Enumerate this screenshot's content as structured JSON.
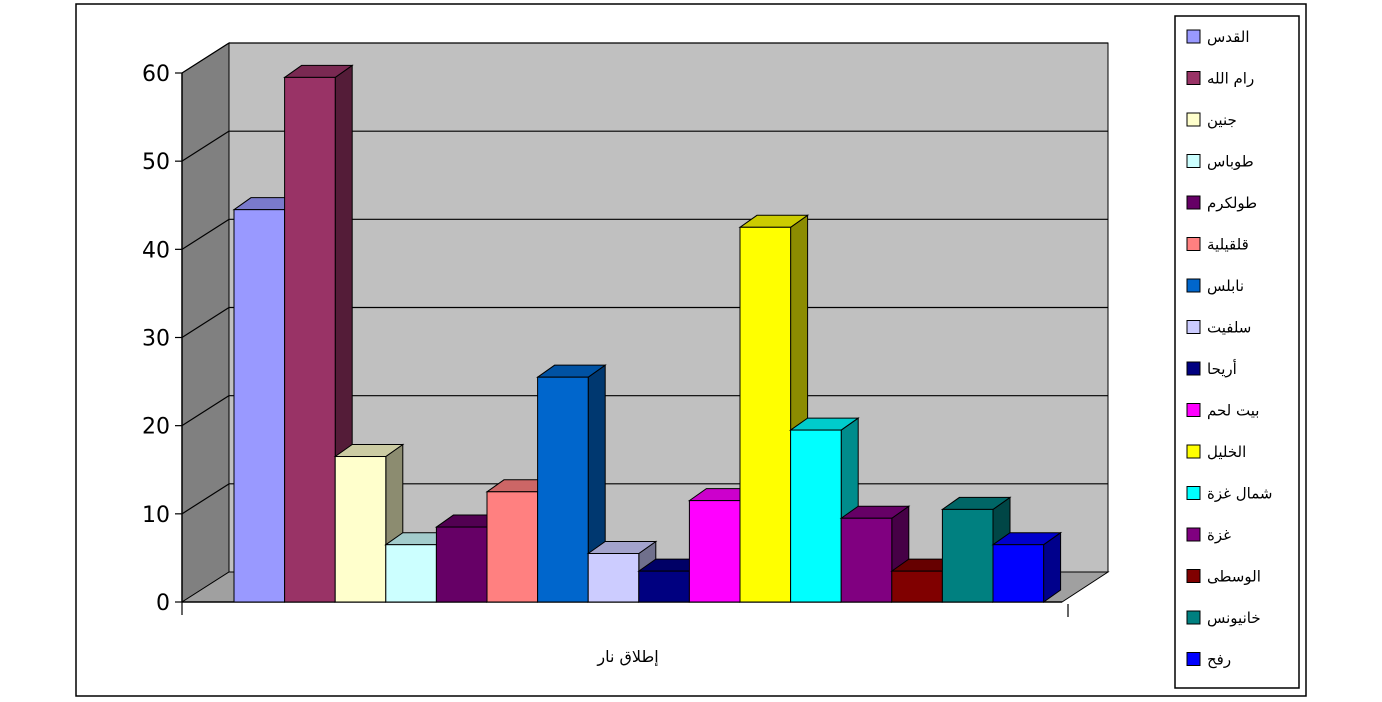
{
  "chart_data": {
    "type": "bar",
    "title": "",
    "xlabel": "",
    "ylabel": "",
    "categories": [
      "إطلاق نار"
    ],
    "ylim": [
      0,
      60
    ],
    "yticks": [
      0,
      10,
      20,
      30,
      40,
      50,
      60
    ],
    "grid": true,
    "legend_position": "right",
    "series": [
      {
        "name": "القدس",
        "values": [
          44.5
        ],
        "color": "#9999ff"
      },
      {
        "name": "رام الله",
        "values": [
          59.5
        ],
        "color": "#993366"
      },
      {
        "name": "جنين",
        "values": [
          16.5
        ],
        "color": "#ffffcc"
      },
      {
        "name": "طوباس",
        "values": [
          6.5
        ],
        "color": "#ccffff"
      },
      {
        "name": "طولكرم",
        "values": [
          8.5
        ],
        "color": "#660066"
      },
      {
        "name": "قلقيلية",
        "values": [
          12.5
        ],
        "color": "#ff8080"
      },
      {
        "name": "نابلس",
        "values": [
          25.5
        ],
        "color": "#0066cc"
      },
      {
        "name": "سلفيت",
        "values": [
          5.5
        ],
        "color": "#ccccff"
      },
      {
        "name": "أريحا",
        "values": [
          3.5
        ],
        "color": "#000080"
      },
      {
        "name": "بيت لحم",
        "values": [
          11.5
        ],
        "color": "#ff00ff"
      },
      {
        "name": "الخليل",
        "values": [
          42.5
        ],
        "color": "#ffff00"
      },
      {
        "name": "شمال غزة",
        "values": [
          19.5
        ],
        "color": "#00ffff"
      },
      {
        "name": "غزة",
        "values": [
          9.5
        ],
        "color": "#800080"
      },
      {
        "name": "الوسطى",
        "values": [
          3.5
        ],
        "color": "#800000"
      },
      {
        "name": "خانيونس",
        "values": [
          10.5
        ],
        "color": "#008080"
      },
      {
        "name": "رفح",
        "values": [
          6.5
        ],
        "color": "#0000ff"
      }
    ]
  }
}
